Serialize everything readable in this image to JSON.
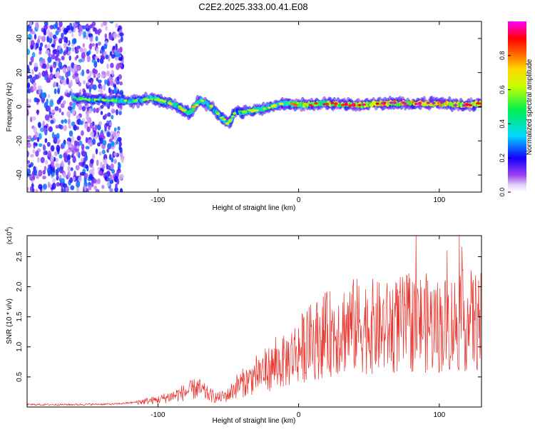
{
  "title": "C2E2.2025.333.00.41.E08",
  "colors": {
    "snr_line": "#e8322a",
    "axis": "#000000",
    "background": "#ffffff"
  },
  "chart_data": [
    {
      "type": "heatmap",
      "xlabel": "Height of straight line (km)",
      "ylabel": "Frequency (Hz)",
      "xlim": [
        -193,
        130
      ],
      "ylim": [
        -50,
        50
      ],
      "x_ticks": [
        -100,
        0,
        100
      ],
      "x_tick_labels": [
        "-100",
        "0",
        "100"
      ],
      "y_ticks": [
        -40,
        -20,
        0,
        20,
        40
      ],
      "y_tick_labels": [
        "-40",
        "-20",
        "0",
        "20",
        "40"
      ],
      "colorbar": {
        "label": "Normalized spectral amplitude",
        "range": [
          0,
          1
        ],
        "ticks": [
          0.0,
          0.2,
          0.4,
          0.6,
          0.8
        ],
        "tick_labels": [
          "0.0",
          "0.2",
          "0.4",
          "0.6",
          "0.8"
        ],
        "colormap": "rainbow"
      },
      "ridge": {
        "x": [
          -160,
          -140,
          -120,
          -105,
          -95,
          -85,
          -78,
          -70,
          -62,
          -55,
          -50,
          -45,
          -40,
          -30,
          -20,
          -10,
          0,
          20,
          40,
          60,
          80,
          100,
          120,
          130
        ],
        "freq": [
          5,
          4,
          3,
          5,
          3,
          0,
          -4,
          4,
          0,
          -6,
          -10,
          -3,
          -3,
          -2,
          0,
          2,
          1,
          2,
          1,
          2,
          2,
          2,
          1,
          2
        ],
        "amplitude": [
          0.35,
          0.4,
          0.45,
          0.4,
          0.45,
          0.5,
          0.5,
          0.5,
          0.45,
          0.45,
          0.5,
          0.35,
          0.4,
          0.45,
          0.5,
          0.55,
          0.6,
          0.7,
          0.75,
          0.8,
          0.85,
          0.85,
          0.8,
          0.7
        ]
      },
      "noise_region": {
        "x_range": [
          -193,
          -125
        ],
        "freq_range": [
          -50,
          50
        ],
        "amplitude_range": [
          0.05,
          0.3
        ]
      }
    },
    {
      "type": "line",
      "xlabel": "Height of straight line (km)",
      "ylabel": "SNR (10 * v/v)",
      "y_scale_label": "(x10",
      "y_scale_exponent": "4",
      "y_scale_suffix": ")",
      "xlim": [
        -193,
        130
      ],
      "ylim": [
        0,
        2.85
      ],
      "x_ticks": [
        -100,
        0,
        100
      ],
      "x_tick_labels": [
        "-100",
        "0",
        "100"
      ],
      "y_ticks": [
        0.5,
        1.0,
        1.5,
        2.0,
        2.5
      ],
      "y_tick_labels": [
        "0.5",
        "1.0",
        "1.5",
        "2.0",
        "2.5"
      ],
      "series": [
        {
          "name": "SNR",
          "envelope_x": [
            -193,
            -160,
            -130,
            -115,
            -100,
            -90,
            -80,
            -72,
            -65,
            -58,
            -50,
            -44,
            -40,
            -35,
            -30,
            -20,
            -10,
            0,
            10,
            20,
            30,
            40,
            50,
            60,
            70,
            80,
            90,
            100,
            110,
            120,
            130
          ],
          "envelope_y": [
            0.04,
            0.04,
            0.05,
            0.08,
            0.12,
            0.18,
            0.25,
            0.32,
            0.22,
            0.15,
            0.2,
            0.35,
            0.4,
            0.45,
            0.55,
            0.65,
            0.75,
            0.95,
            1.1,
            1.2,
            1.3,
            1.35,
            1.35,
            1.3,
            1.35,
            1.4,
            1.4,
            1.35,
            1.4,
            1.45,
            1.4
          ]
        }
      ]
    }
  ]
}
